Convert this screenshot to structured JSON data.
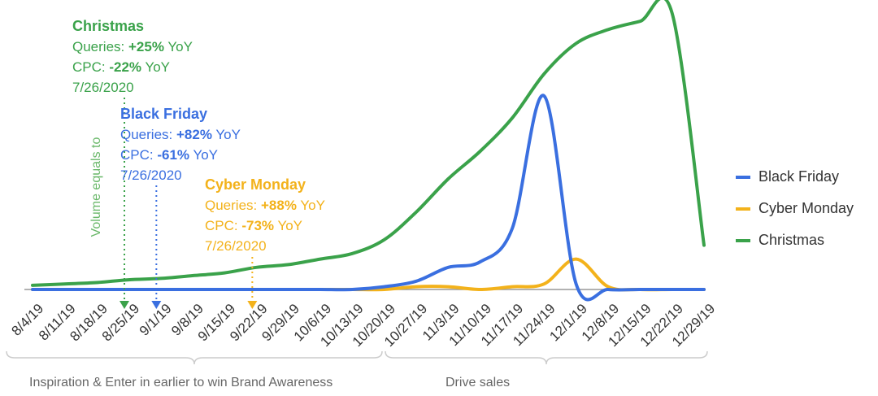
{
  "colors": {
    "black_friday": "#3a6fe0",
    "cyber_monday": "#f3b21b",
    "christmas": "#3aa24a"
  },
  "annotations": {
    "christmas": {
      "title": "Christmas",
      "q_pre": "Queries: ",
      "q_val": "+25%",
      "q_post": " YoY",
      "c_pre": "CPC: ",
      "c_val": "-22%",
      "c_post": " YoY",
      "date": "7/26/2020"
    },
    "black_friday": {
      "title": "Black Friday",
      "q_pre": "Queries: ",
      "q_val": "+82%",
      "q_post": " YoY",
      "c_pre": "CPC: ",
      "c_val": "-61%",
      "c_post": " YoY",
      "date": "7/26/2020"
    },
    "cyber_monday": {
      "title": "Cyber Monday",
      "q_pre": "Queries: ",
      "q_val": "+88%",
      "q_post": " YoY",
      "c_pre": "CPC: ",
      "c_val": "-73%",
      "c_post": " YoY",
      "date": "7/26/2020"
    }
  },
  "volume_label": "Volume equals to",
  "phases": {
    "phase1": "Inspiration & Enter in earlier to win Brand Awareness",
    "phase2": "Drive sales"
  },
  "legend": [
    "Black Friday",
    "Cyber Monday",
    "Christmas"
  ],
  "chart_data": {
    "type": "line",
    "categories": [
      "8/4/19",
      "8/11/19",
      "8/18/19",
      "8/25/19",
      "9/1/19",
      "9/8/19",
      "9/15/19",
      "9/22/19",
      "9/29/19",
      "10/6/19",
      "10/13/19",
      "10/20/19",
      "10/27/19",
      "11/3/19",
      "11/10/19",
      "11/17/19",
      "11/24/19",
      "12/1/19",
      "12/8/19",
      "12/15/19",
      "12/22/19",
      "12/29/19"
    ],
    "series": [
      {
        "name": "Black Friday",
        "values": [
          0,
          0,
          0,
          0,
          0,
          0,
          0,
          0,
          0,
          0,
          0,
          1,
          3,
          8,
          10,
          22,
          70,
          2,
          0,
          0,
          0,
          0
        ]
      },
      {
        "name": "Cyber Monday",
        "values": [
          0,
          0,
          0,
          0,
          0,
          0,
          0,
          0,
          0,
          0,
          0,
          0,
          1,
          1,
          0,
          1,
          2,
          11,
          1,
          0,
          0,
          0
        ]
      },
      {
        "name": "Christmas",
        "values": [
          1.5,
          2,
          2.5,
          3.5,
          4,
          5,
          6,
          8,
          9,
          11,
          13,
          18,
          28,
          40,
          50,
          62,
          78,
          89,
          94,
          97,
          100,
          16
        ]
      }
    ],
    "ylim": [
      0,
      100
    ],
    "markers": {
      "christmas": "8/25/19",
      "black_friday": "9/1/19",
      "cyber_monday": "9/22/19"
    },
    "grid": false,
    "legend_position": "right"
  }
}
